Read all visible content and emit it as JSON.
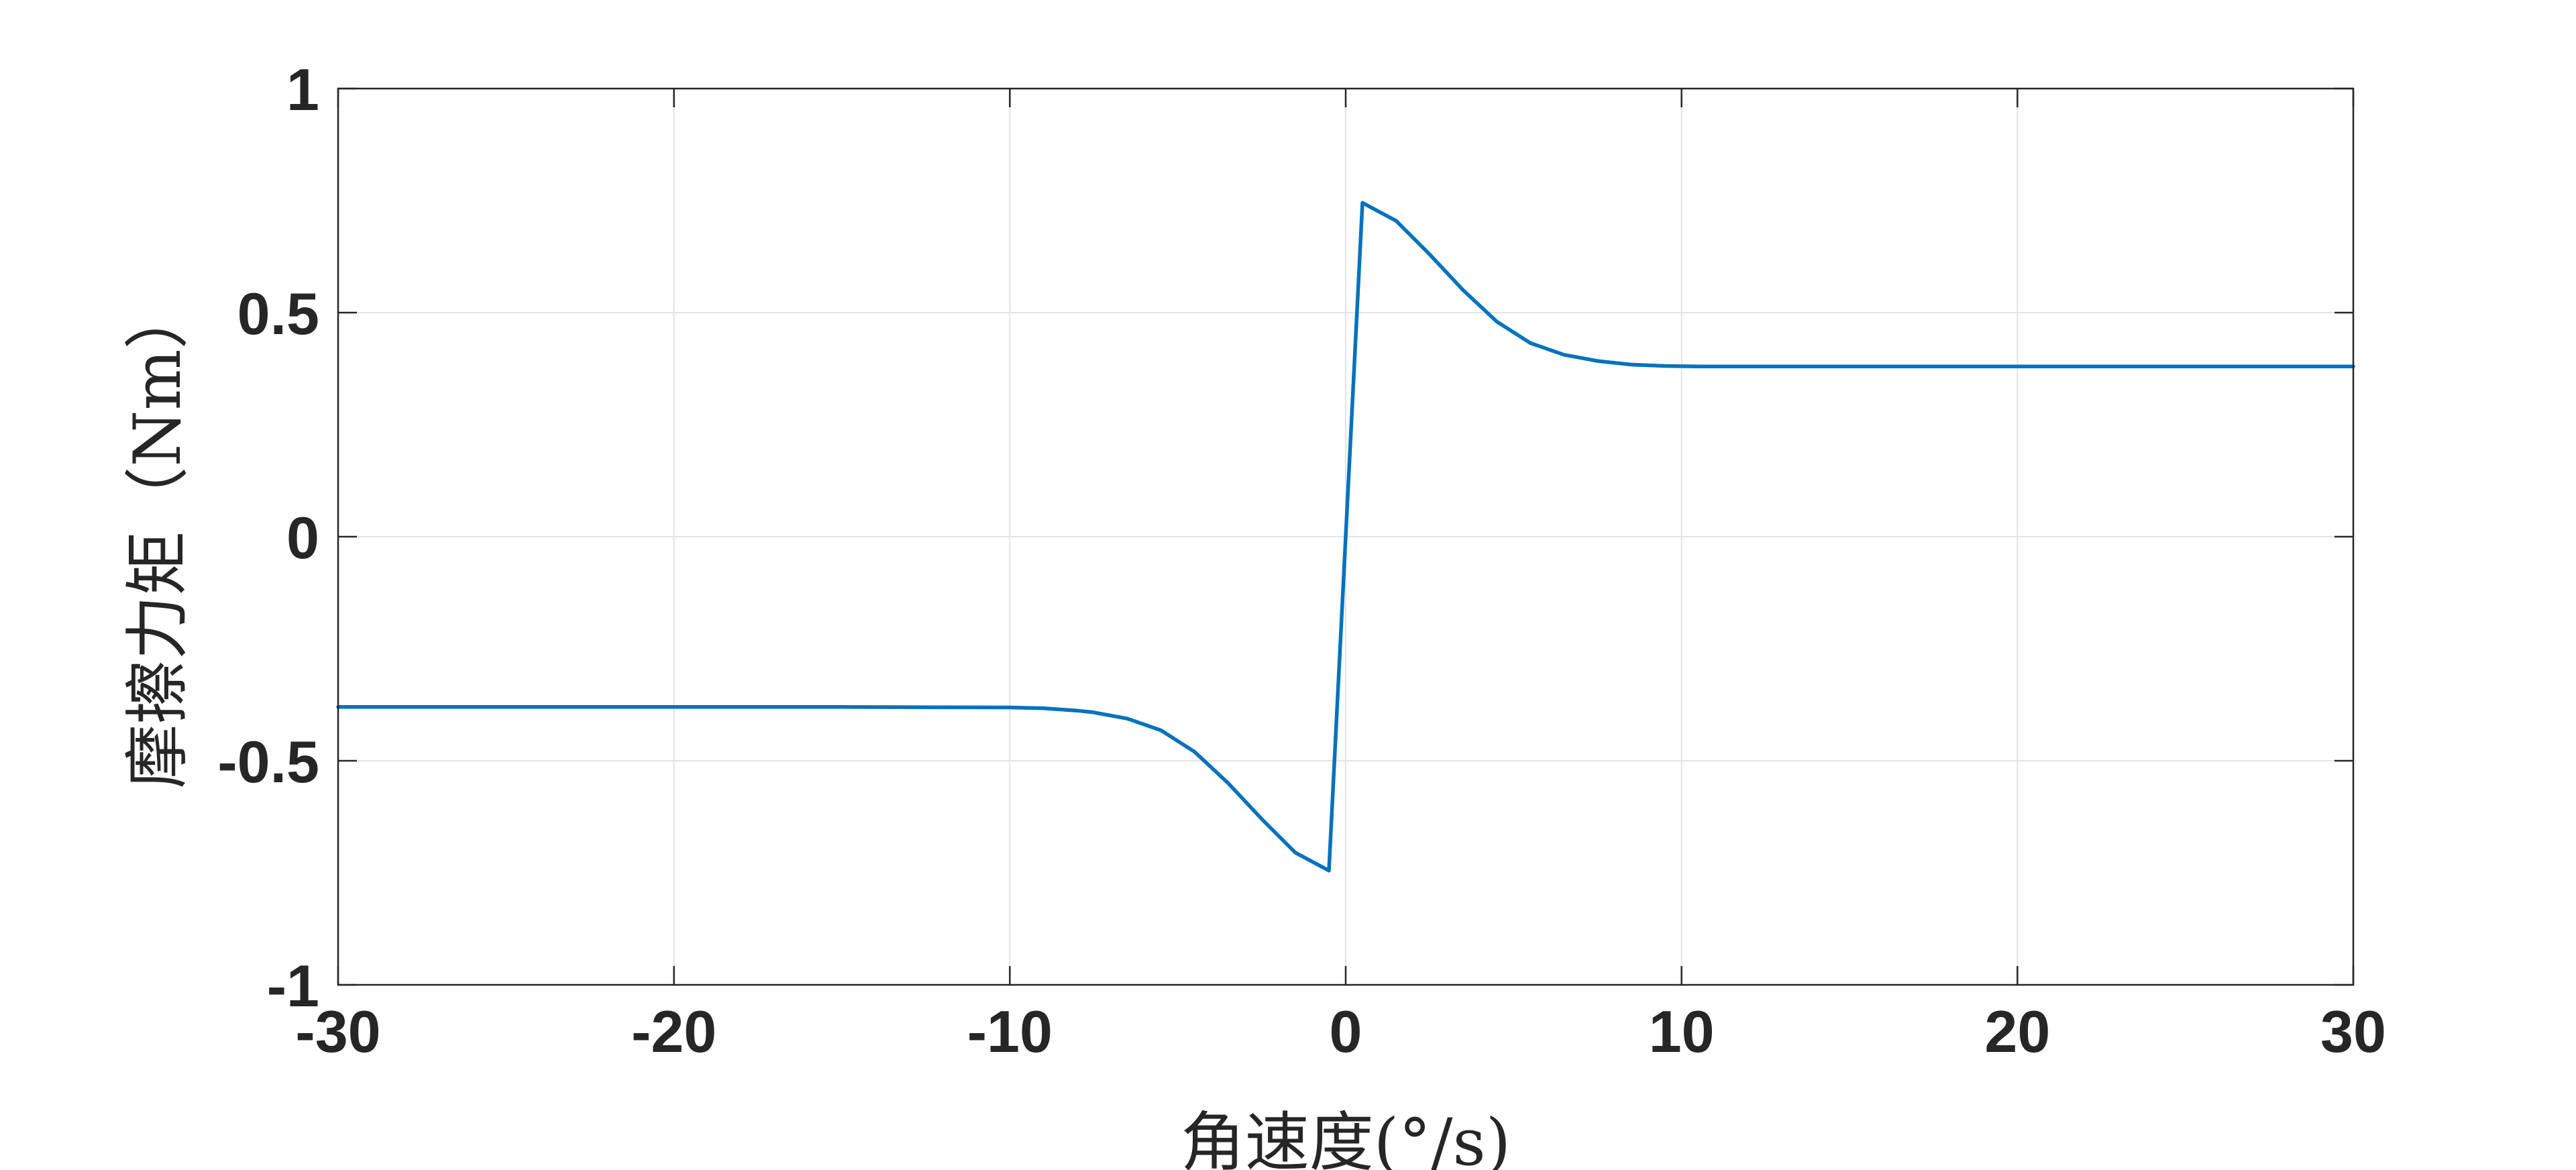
{
  "chart_data": {
    "type": "line",
    "xlabel": "角速度(°/s)",
    "ylabel": "摩擦力矩（Nm）",
    "xlim": [
      -30,
      30
    ],
    "ylim": [
      -1,
      1
    ],
    "xticks": [
      -30,
      -20,
      -10,
      0,
      10,
      20,
      30
    ],
    "xtick_labels": [
      "-30",
      "-20",
      "-10",
      "0",
      "10",
      "20",
      "30"
    ],
    "yticks": [
      -1,
      -0.5,
      0,
      0.5,
      1
    ],
    "ytick_labels": [
      "-1",
      "-0.5",
      "0",
      "0.5",
      "1"
    ],
    "grid": true,
    "series": [
      {
        "color": "#0072BD",
        "x": [
          -30,
          -20,
          -15,
          -10,
          -9,
          -8,
          -7.5,
          -6.5,
          -5.5,
          -4.5,
          -3.5,
          -2.5,
          -1.5,
          -0.5,
          0.5,
          1.5,
          2.5,
          3.5,
          4.5,
          5.5,
          6.5,
          7.5,
          8.5,
          9.5,
          10.5,
          15,
          20,
          30
        ],
        "y": [
          -0.38,
          -0.38,
          -0.38,
          -0.381,
          -0.383,
          -0.388,
          -0.392,
          -0.406,
          -0.432,
          -0.48,
          -0.55,
          -0.63,
          -0.705,
          -0.745,
          0.745,
          0.705,
          0.63,
          0.55,
          0.48,
          0.432,
          0.406,
          0.392,
          0.384,
          0.381,
          0.38,
          0.38,
          0.38,
          0.38
        ]
      }
    ]
  }
}
